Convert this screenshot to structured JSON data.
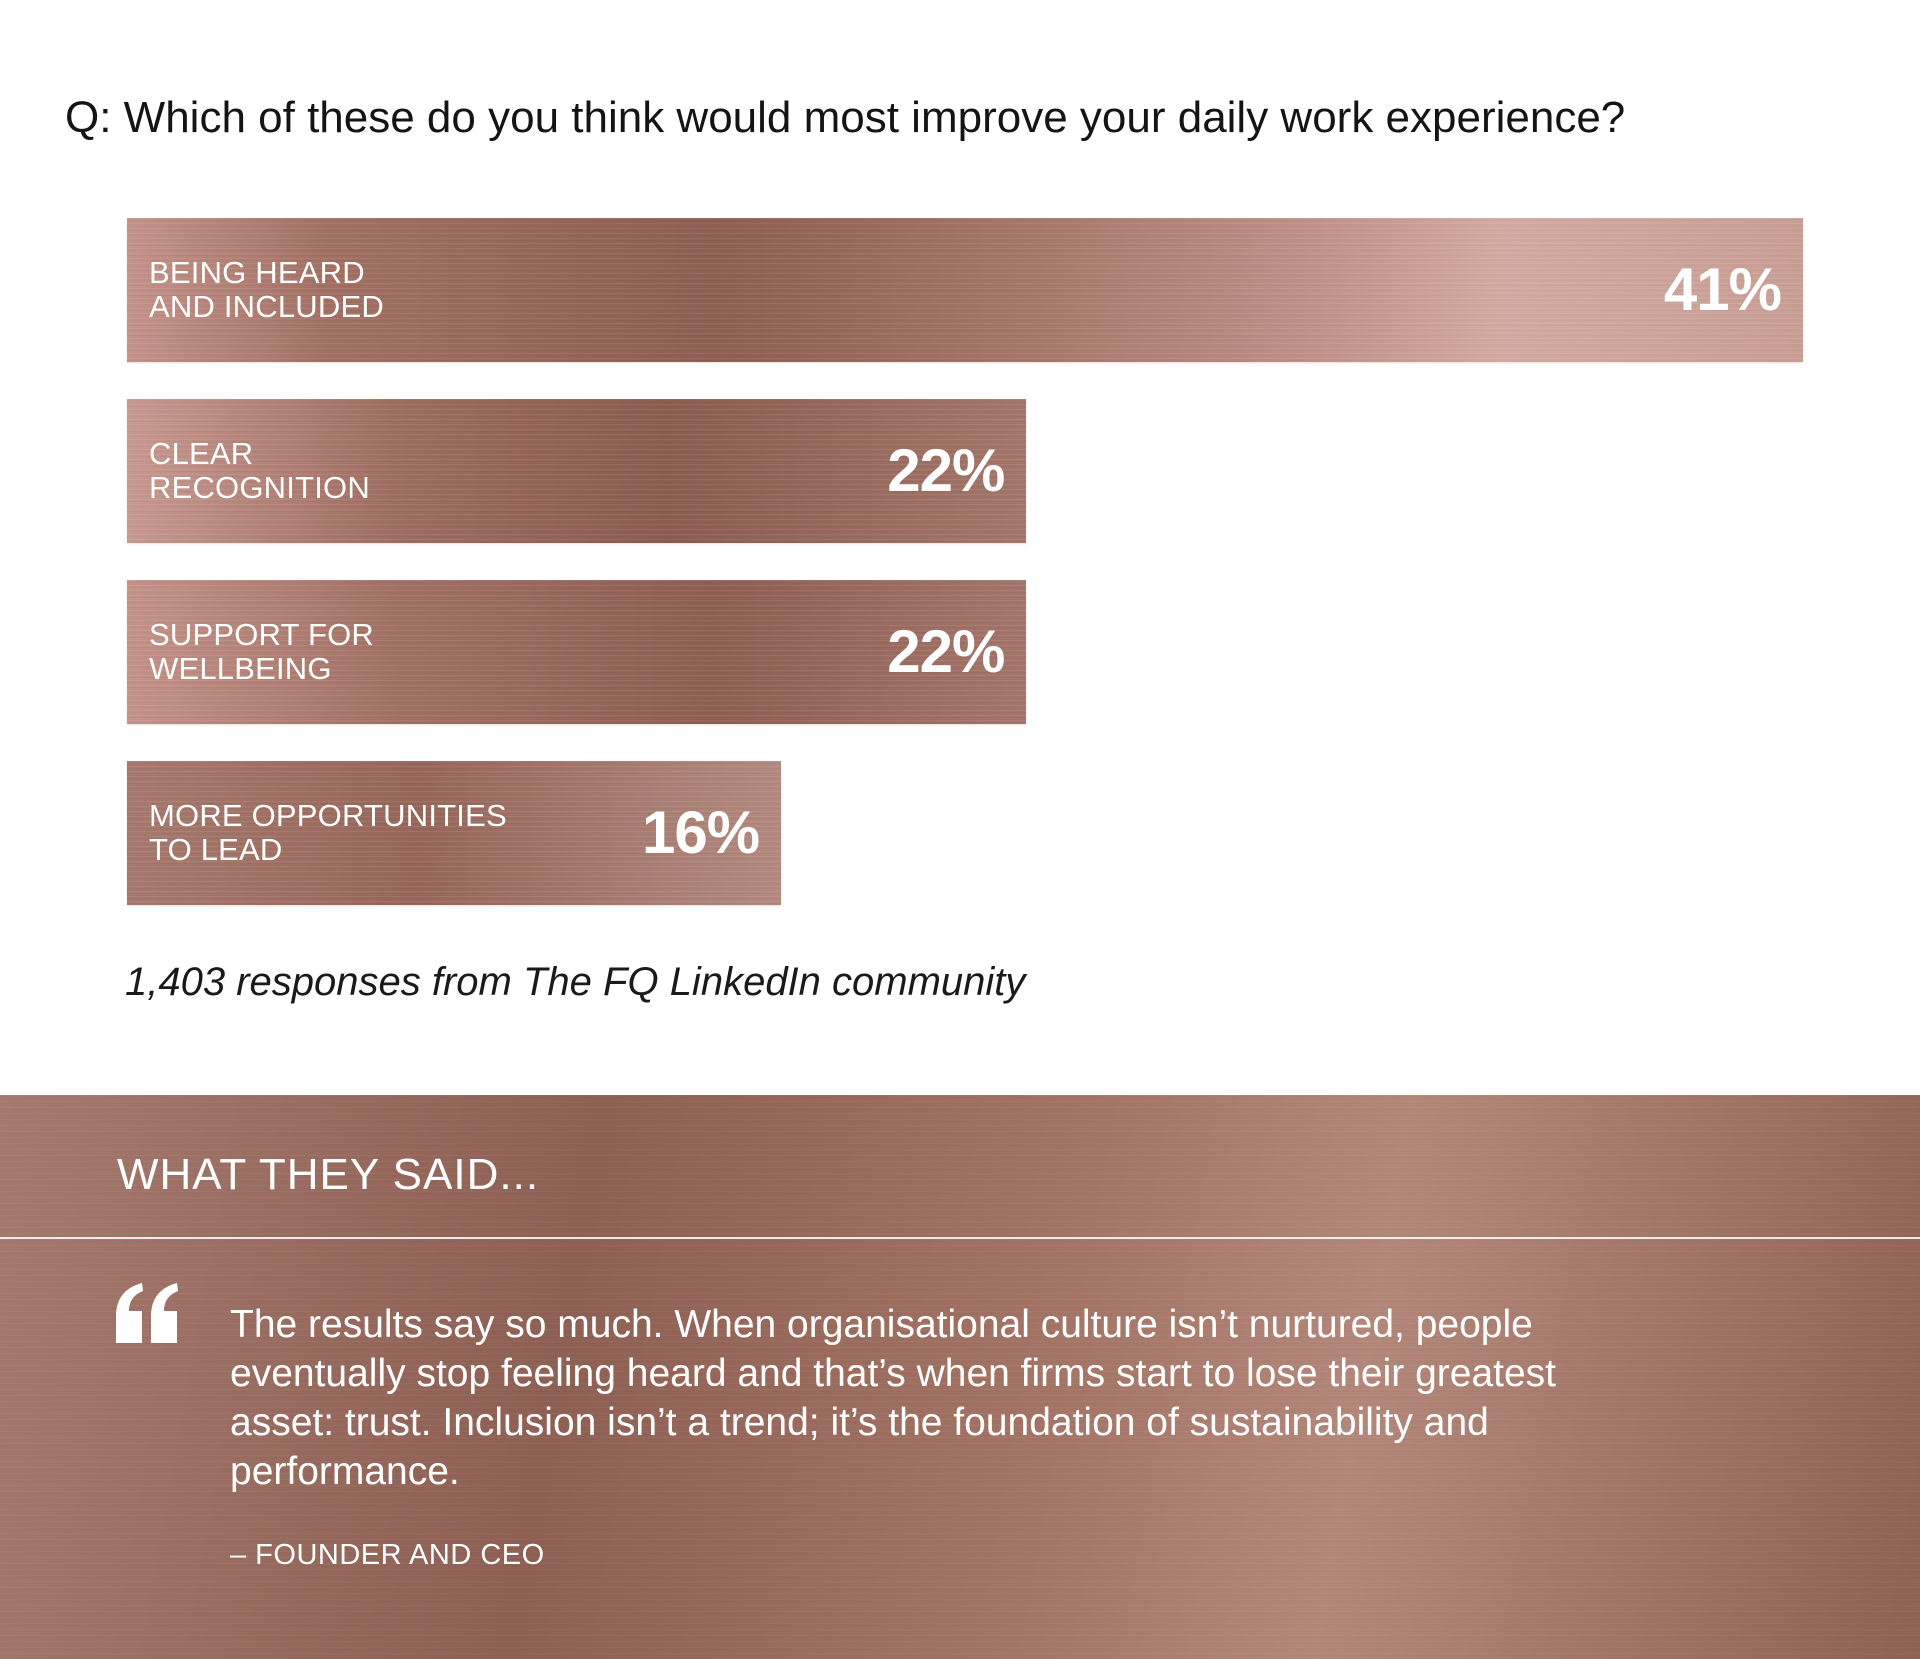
{
  "question": "Q: Which of these do you think would most improve your daily work experience?",
  "chart_data": {
    "type": "bar",
    "orientation": "horizontal",
    "categories": [
      "BEING HEARD AND INCLUDED",
      "CLEAR RECOGNITION",
      "SUPPORT FOR WELLBEING",
      "MORE OPPORTUNITIES TO LEAD"
    ],
    "label_lines": [
      [
        "BEING HEARD",
        "AND INCLUDED"
      ],
      [
        "CLEAR",
        "RECOGNITION"
      ],
      [
        "SUPPORT FOR",
        "WELLBEING"
      ],
      [
        "MORE OPPORTUNITIES",
        "TO LEAD"
      ]
    ],
    "values": [
      41,
      22,
      22,
      16
    ],
    "value_labels": [
      "41%",
      "22%",
      "22%",
      "16%"
    ],
    "unit": "%",
    "xlim": [
      0,
      41
    ],
    "grid": false,
    "bar_color": "#a9766a"
  },
  "caption": "1,403 responses from The FQ LinkedIn community",
  "said": {
    "title": "WHAT THEY SAID...",
    "quote": "The results say so much. When organisational culture isn’t nurtured, people eventually stop feeling heard and that’s when firms start to lose their greatest asset: trust. Inclusion isn’t a trend; it’s the foundation of sustainability and performance.",
    "attribution": "– FOUNDER AND CEO",
    "quote_icon": "quote-open-icon",
    "background_color": "#9e6f62"
  }
}
